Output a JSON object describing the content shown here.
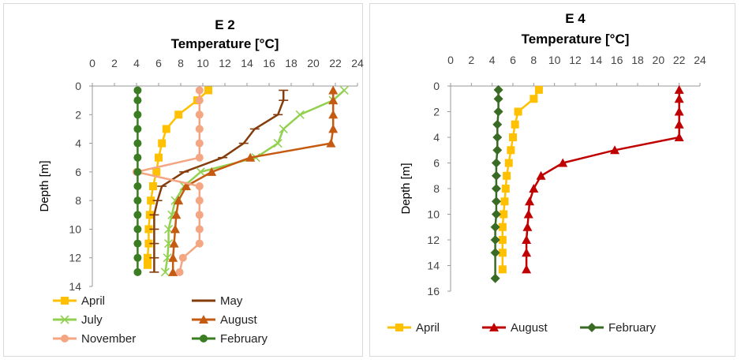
{
  "chart_data": [
    {
      "type": "line",
      "title": "E 2",
      "xlabel": "Temperature [°C]",
      "ylabel": "Depth [m]",
      "xlim": [
        0,
        24
      ],
      "ylim": [
        0,
        14
      ],
      "x_ticks": [
        0,
        2,
        4,
        6,
        8,
        10,
        12,
        14,
        16,
        18,
        20,
        22,
        24
      ],
      "y_ticks": [
        0,
        2,
        4,
        6,
        8,
        10,
        12,
        14
      ],
      "x_axis_position": "top",
      "y_axis_reversed": true,
      "legend": "bottom",
      "series": [
        {
          "name": "April",
          "color": "#ffc000",
          "marker": "square",
          "x": [
            10.5,
            9.5,
            7.8,
            6.7,
            6.3,
            6.0,
            5.8,
            5.5,
            5.3,
            5.2,
            5.1,
            5.1,
            5.0,
            5.0
          ],
          "y": [
            0.3,
            1,
            2,
            3,
            4,
            5,
            6,
            7,
            8,
            9,
            10,
            11,
            12,
            12.5
          ]
        },
        {
          "name": "May",
          "color": "#843c0c",
          "marker": "dash",
          "x": [
            17.3,
            17.3,
            16.8,
            14.7,
            13.7,
            11.8,
            8.3,
            6.3,
            5.9,
            5.6,
            5.6,
            5.6,
            5.6,
            5.6
          ],
          "y": [
            0.3,
            1,
            2,
            3,
            4,
            5,
            6,
            7,
            8,
            9,
            10,
            11,
            12,
            13
          ]
        },
        {
          "name": "July",
          "color": "#92d050",
          "marker": "x",
          "x": [
            22.8,
            21.8,
            18.8,
            17.3,
            16.8,
            14.8,
            9.8,
            8.3,
            7.5,
            7.2,
            6.9,
            6.9,
            6.8,
            6.6
          ],
          "y": [
            0.3,
            1,
            2,
            3,
            4,
            5,
            6,
            7,
            8,
            9,
            10,
            11,
            12,
            13
          ]
        },
        {
          "name": "August",
          "color": "#c55a11",
          "marker": "triangle",
          "x": [
            21.8,
            21.8,
            21.8,
            21.8,
            21.6,
            14.3,
            10.8,
            8.5,
            7.8,
            7.6,
            7.5,
            7.4,
            7.3,
            7.3
          ],
          "y": [
            0.3,
            1,
            2,
            3,
            4,
            5,
            6,
            7,
            8,
            9,
            10,
            11,
            12,
            13
          ]
        },
        {
          "name": "November",
          "color": "#f4a582",
          "marker": "circle",
          "x": [
            9.7,
            9.7,
            9.7,
            9.7,
            9.7,
            9.7,
            4.0,
            9.7,
            9.7,
            9.7,
            9.7,
            9.7,
            8.2,
            7.9
          ],
          "y": [
            0.3,
            1,
            2,
            3,
            4,
            5,
            6,
            7,
            8,
            9,
            10,
            11,
            12,
            13
          ]
        },
        {
          "name": "February",
          "color": "#3a7d22",
          "marker": "circle",
          "x": [
            4.1,
            4.1,
            4.1,
            4.1,
            4.1,
            4.1,
            4.1,
            4.1,
            4.1,
            4.1,
            4.1,
            4.1,
            4.1,
            4.1
          ],
          "y": [
            0.3,
            1,
            2,
            3,
            4,
            5,
            6,
            7,
            8,
            9,
            10,
            11,
            12,
            13
          ]
        }
      ]
    },
    {
      "type": "line",
      "title": "E 4",
      "xlabel": "Temperature [°C]",
      "ylabel": "Depth [m]",
      "xlim": [
        0,
        24
      ],
      "ylim": [
        0,
        16
      ],
      "x_ticks": [
        0,
        2,
        4,
        6,
        8,
        10,
        12,
        14,
        16,
        18,
        20,
        22,
        24
      ],
      "y_ticks": [
        0,
        2,
        4,
        6,
        8,
        10,
        12,
        14,
        16
      ],
      "x_axis_position": "top",
      "y_axis_reversed": true,
      "legend": "bottom",
      "series": [
        {
          "name": "April",
          "color": "#ffc000",
          "marker": "square",
          "x": [
            8.5,
            8.0,
            6.5,
            6.2,
            6.0,
            5.8,
            5.6,
            5.4,
            5.3,
            5.2,
            5.1,
            5.0,
            5.0,
            5.0,
            5.0
          ],
          "y": [
            0.3,
            1,
            2,
            3,
            4,
            5,
            6,
            7,
            8,
            9,
            10,
            11,
            12,
            13,
            14.3
          ]
        },
        {
          "name": "August",
          "color": "#c00000",
          "marker": "triangle",
          "x": [
            22.0,
            22.0,
            22.0,
            22.0,
            22.0,
            15.8,
            10.8,
            8.7,
            8.0,
            7.6,
            7.5,
            7.4,
            7.3,
            7.3,
            7.3
          ],
          "y": [
            0.3,
            1,
            2,
            3,
            4,
            5,
            6,
            7,
            8,
            9,
            10,
            11,
            12,
            13,
            14.3
          ]
        },
        {
          "name": "February",
          "color": "#3a6b24",
          "marker": "diamond",
          "x": [
            4.6,
            4.6,
            4.6,
            4.5,
            4.5,
            4.5,
            4.4,
            4.4,
            4.4,
            4.4,
            4.4,
            4.3,
            4.3,
            4.3,
            4.3
          ],
          "y": [
            0.3,
            1,
            2,
            3,
            4,
            5,
            6,
            7,
            8,
            9,
            10,
            11,
            12,
            13,
            15
          ]
        }
      ]
    }
  ]
}
